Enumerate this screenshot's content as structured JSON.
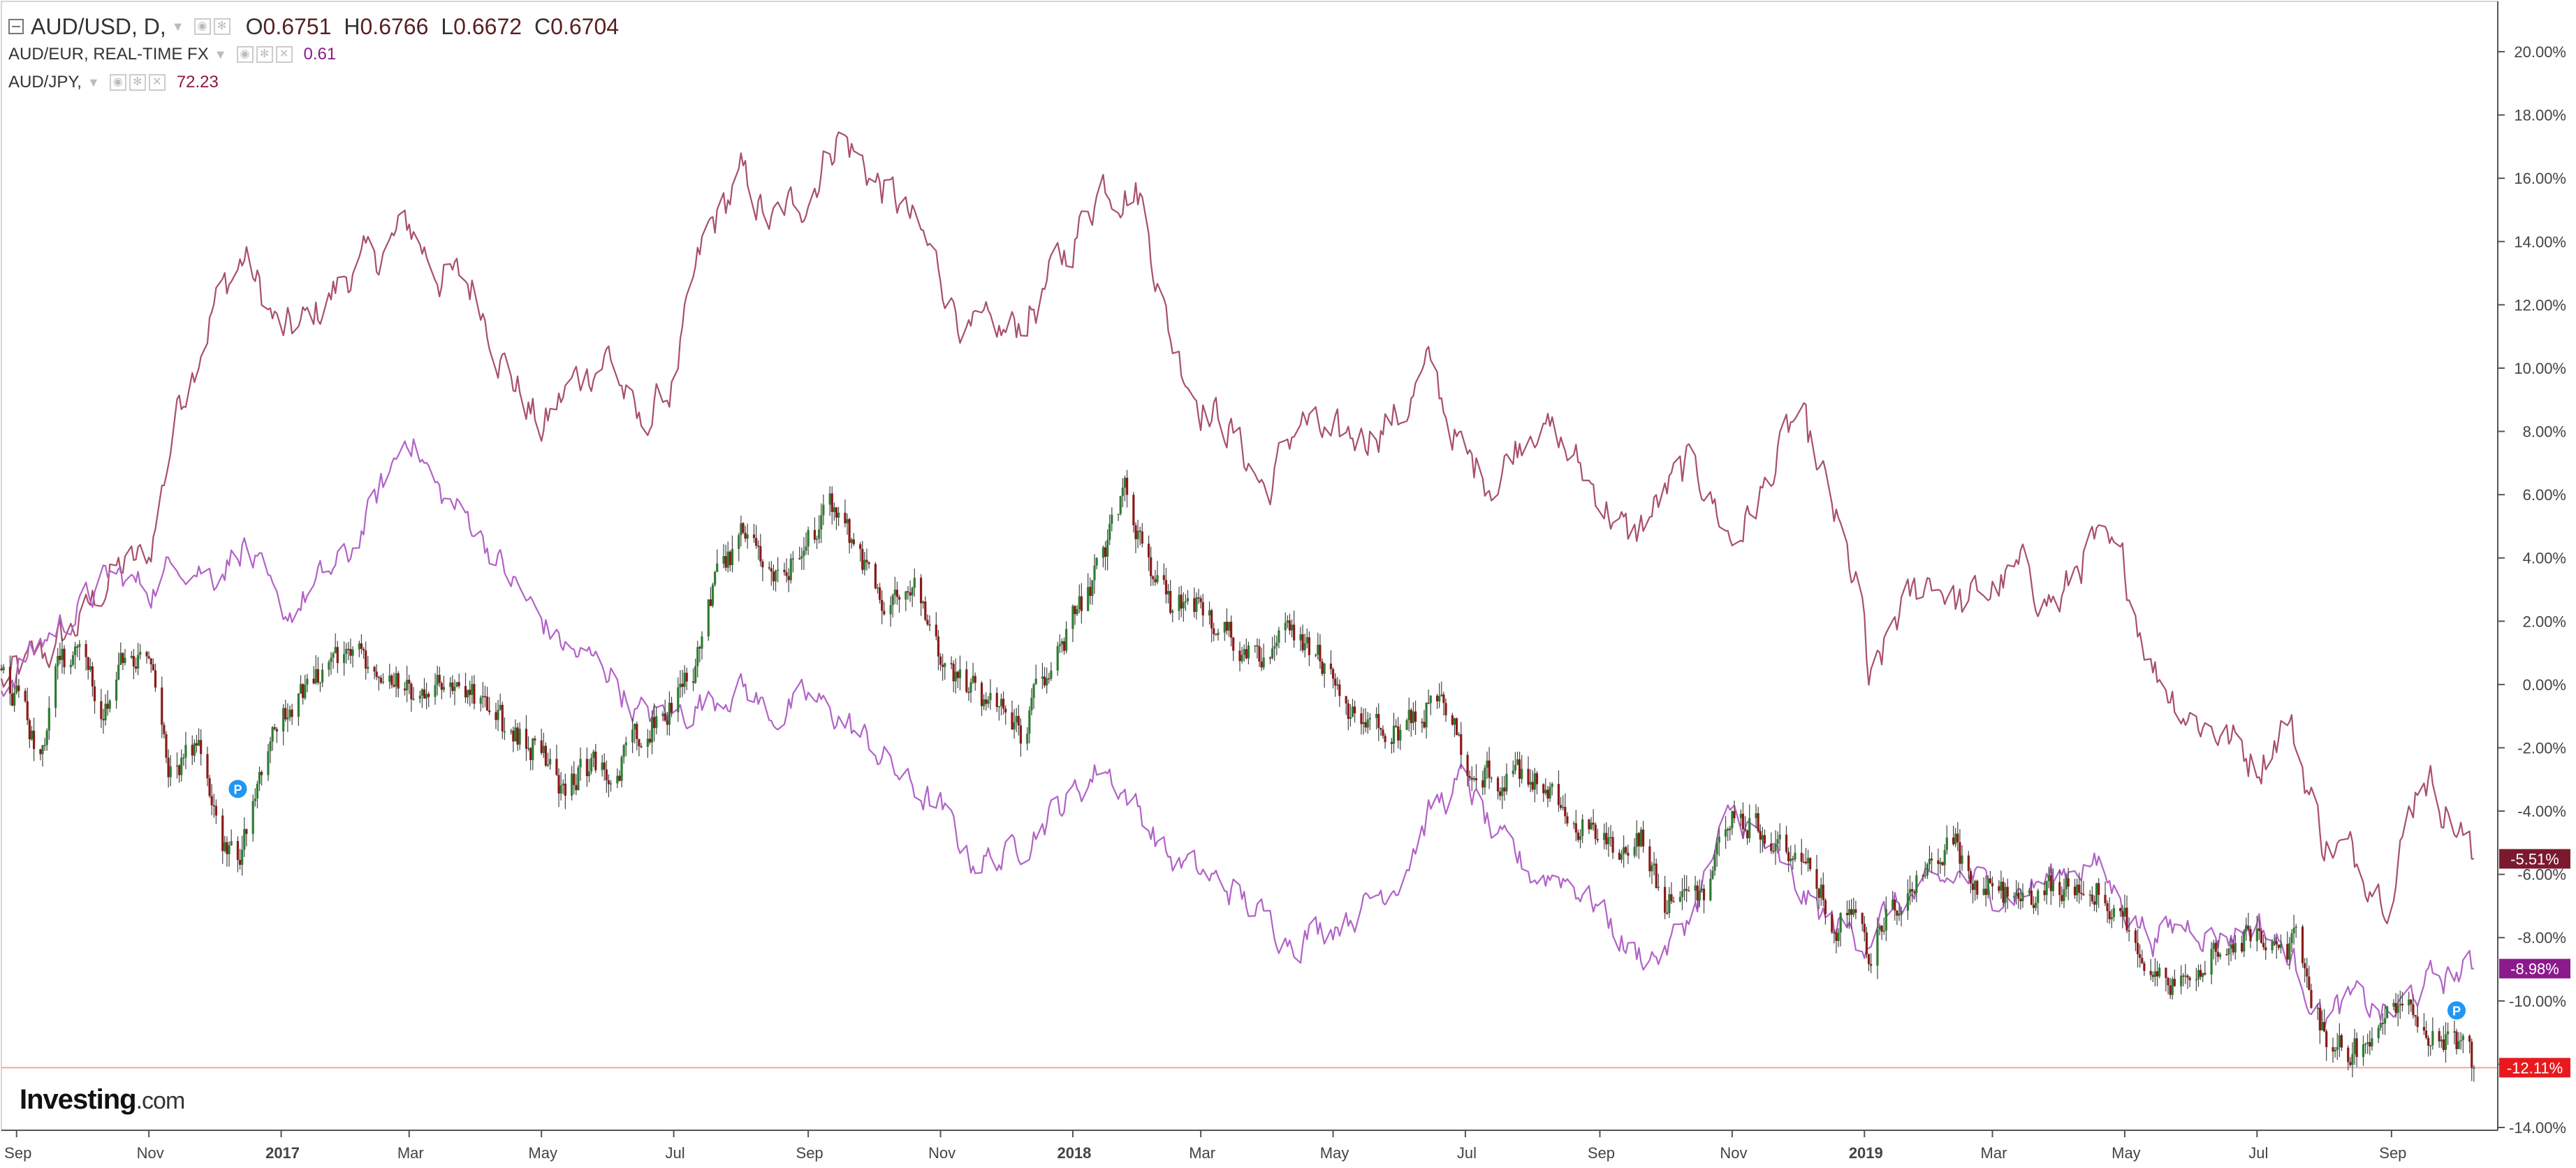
{
  "legend": {
    "main": {
      "symbol": "AUD/USD, D,",
      "o_label": "O",
      "o_value": "0.6751",
      "h_label": "H",
      "h_value": "0.6766",
      "l_label": "L",
      "l_value": "0.6672",
      "c_label": "C",
      "c_value": "0.6704"
    },
    "eur": {
      "symbol": "AUD/EUR, REAL-TIME FX",
      "value": "0.61"
    },
    "jpy": {
      "symbol": "AUD/JPY,",
      "value": "72.23"
    }
  },
  "logo": {
    "text": "Investing",
    "suffix": ".com"
  },
  "colors": {
    "candle_up": "#2e7d32",
    "candle_down": "#8b1a1a",
    "eur_line": "#b263c7",
    "jpy_line": "#a8506b",
    "usd_badge": "#e8191e",
    "eur_badge": "#8b1a8b",
    "jpy_badge": "#7b1a2e",
    "last_price_line": "#f2a7a0"
  },
  "chart_data": {
    "type": "line",
    "title": "",
    "xlabel": "",
    "ylabel": "",
    "ylim": [
      -14.5,
      21
    ],
    "y_ticks": [
      "20.00%",
      "18.00%",
      "16.00%",
      "14.00%",
      "12.00%",
      "10.00%",
      "8.00%",
      "6.00%",
      "4.00%",
      "2.00%",
      "0.00%",
      "-2.00%",
      "-4.00%",
      "-6.00%",
      "-8.00%",
      "-10.00%",
      "-12.00%",
      "-14.00%"
    ],
    "y_tick_values": [
      20,
      18,
      16,
      14,
      12,
      10,
      8,
      6,
      4,
      2,
      0,
      -2,
      -4,
      -6,
      -8,
      -10,
      -12,
      -14
    ],
    "x_range": [
      "2016-08-25",
      "2019-10-20"
    ],
    "x_ticks": [
      {
        "label": "Sep",
        "date": "2016-09-01",
        "bold": false
      },
      {
        "label": "Nov",
        "date": "2016-11-01",
        "bold": false
      },
      {
        "label": "2017",
        "date": "2017-01-01",
        "bold": true
      },
      {
        "label": "Mar",
        "date": "2017-03-01",
        "bold": false
      },
      {
        "label": "May",
        "date": "2017-05-01",
        "bold": false
      },
      {
        "label": "Jul",
        "date": "2017-07-01",
        "bold": false
      },
      {
        "label": "Sep",
        "date": "2017-09-01",
        "bold": false
      },
      {
        "label": "Nov",
        "date": "2017-11-01",
        "bold": false
      },
      {
        "label": "2018",
        "date": "2018-01-01",
        "bold": true
      },
      {
        "label": "Mar",
        "date": "2018-03-01",
        "bold": false
      },
      {
        "label": "May",
        "date": "2018-05-01",
        "bold": false
      },
      {
        "label": "Jul",
        "date": "2018-07-01",
        "bold": false
      },
      {
        "label": "Sep",
        "date": "2018-09-01",
        "bold": false
      },
      {
        "label": "Nov",
        "date": "2018-11-01",
        "bold": false
      },
      {
        "label": "2019",
        "date": "2019-01-01",
        "bold": true
      },
      {
        "label": "Mar",
        "date": "2019-03-01",
        "bold": false
      },
      {
        "label": "May",
        "date": "2019-05-01",
        "bold": false
      },
      {
        "label": "Jul",
        "date": "2019-07-01",
        "bold": false
      },
      {
        "label": "Sep",
        "date": "2019-09-01",
        "bold": false
      }
    ],
    "series": [
      {
        "name": "AUD/USD",
        "kind": "candlestick",
        "x": [
          "2016-08-25",
          "2016-09-01",
          "2016-09-12",
          "2016-09-20",
          "2016-10-01",
          "2016-10-10",
          "2016-10-20",
          "2016-11-01",
          "2016-11-07",
          "2016-11-10",
          "2016-11-15",
          "2016-11-25",
          "2016-12-05",
          "2016-12-12",
          "2016-12-20",
          "2016-12-28",
          "2017-01-10",
          "2017-01-20",
          "2017-02-01",
          "2017-02-10",
          "2017-02-20",
          "2017-03-01",
          "2017-03-10",
          "2017-03-20",
          "2017-04-01",
          "2017-04-15",
          "2017-05-01",
          "2017-05-10",
          "2017-05-20",
          "2017-06-01",
          "2017-06-15",
          "2017-07-01",
          "2017-07-10",
          "2017-07-20",
          "2017-08-01",
          "2017-08-10",
          "2017-08-20",
          "2017-09-01",
          "2017-09-10",
          "2017-09-20",
          "2017-10-01",
          "2017-10-10",
          "2017-10-20",
          "2017-11-01",
          "2017-11-10",
          "2017-11-20",
          "2017-12-01",
          "2017-12-08",
          "2017-12-20",
          "2018-01-01",
          "2018-01-10",
          "2018-01-20",
          "2018-01-26",
          "2018-02-05",
          "2018-02-15",
          "2018-03-01",
          "2018-03-15",
          "2018-04-01",
          "2018-04-15",
          "2018-05-01",
          "2018-05-10",
          "2018-05-20",
          "2018-06-01",
          "2018-06-10",
          "2018-06-20",
          "2018-07-01",
          "2018-07-15",
          "2018-08-01",
          "2018-08-10",
          "2018-08-20",
          "2018-09-01",
          "2018-09-10",
          "2018-09-20",
          "2018-10-01",
          "2018-10-10",
          "2018-10-20",
          "2018-11-01",
          "2018-11-15",
          "2018-12-01",
          "2018-12-10",
          "2018-12-20",
          "2019-01-01",
          "2019-01-03",
          "2019-01-10",
          "2019-01-20",
          "2019-02-01",
          "2019-02-10",
          "2019-02-20",
          "2019-03-01",
          "2019-03-15",
          "2019-04-01",
          "2019-04-15",
          "2019-05-01",
          "2019-05-10",
          "2019-05-20",
          "2019-06-01",
          "2019-06-15",
          "2019-07-01",
          "2019-07-10",
          "2019-07-20",
          "2019-08-01",
          "2019-08-10",
          "2019-08-20",
          "2019-09-01",
          "2019-09-10",
          "2019-09-20",
          "2019-10-01",
          "2019-10-09"
        ],
        "values": [
          0.5,
          -0.5,
          -2.0,
          0.5,
          1.0,
          -0.5,
          0.5,
          1.2,
          -1.0,
          -3.5,
          -2.5,
          -2.0,
          -5.0,
          -5.8,
          -3.0,
          -1.5,
          -0.5,
          0.5,
          1.0,
          0.8,
          0.5,
          0.0,
          -1.0,
          0.5,
          -0.5,
          -1.5,
          -2.0,
          -3.5,
          -2.5,
          -3.0,
          -1.5,
          -0.5,
          0.5,
          3.0,
          4.5,
          4.0,
          3.5,
          4.5,
          5.5,
          4.5,
          3.0,
          2.5,
          3.0,
          0.5,
          0.0,
          -0.5,
          -1.0,
          -1.5,
          0.5,
          2.0,
          3.0,
          5.0,
          6.0,
          3.5,
          2.5,
          2.5,
          1.5,
          1.0,
          1.5,
          0.5,
          -1.0,
          -1.5,
          -1.5,
          -1.0,
          0.0,
          -2.5,
          -3.0,
          -3.0,
          -3.5,
          -4.0,
          -5.0,
          -5.5,
          -5.0,
          -7.0,
          -6.5,
          -6.5,
          -4.0,
          -4.5,
          -5.5,
          -6.5,
          -7.5,
          -7.5,
          -9.0,
          -7.5,
          -6.5,
          -6.0,
          -4.5,
          -6.5,
          -6.5,
          -7.0,
          -6.5,
          -6.0,
          -7.5,
          -8.5,
          -9.5,
          -9.5,
          -8.0,
          -8.0,
          -7.5,
          -8.5,
          -11.0,
          -11.5,
          -11.5,
          -10.5,
          -10.0,
          -11.0,
          -11.2,
          -12.11
        ]
      },
      {
        "name": "AUD/EUR",
        "kind": "line",
        "x": [
          "2016-08-25",
          "2016-09-15",
          "2016-10-01",
          "2016-10-15",
          "2016-11-01",
          "2016-11-15",
          "2016-12-01",
          "2016-12-15",
          "2017-01-01",
          "2017-01-15",
          "2017-02-01",
          "2017-02-15",
          "2017-03-01",
          "2017-03-15",
          "2017-04-01",
          "2017-04-15",
          "2017-05-01",
          "2017-05-15",
          "2017-06-01",
          "2017-06-15",
          "2017-07-01",
          "2017-07-15",
          "2017-08-01",
          "2017-08-15",
          "2017-09-01",
          "2017-09-15",
          "2017-10-01",
          "2017-10-15",
          "2017-11-01",
          "2017-11-15",
          "2017-12-01",
          "2017-12-15",
          "2018-01-01",
          "2018-01-15",
          "2018-02-01",
          "2018-02-15",
          "2018-03-01",
          "2018-03-15",
          "2018-04-01",
          "2018-04-15",
          "2018-05-01",
          "2018-05-15",
          "2018-06-01",
          "2018-06-15",
          "2018-07-01",
          "2018-07-15",
          "2018-08-01",
          "2018-08-15",
          "2018-09-01",
          "2018-09-15",
          "2018-10-01",
          "2018-10-15",
          "2018-11-01",
          "2018-11-15",
          "2018-12-01",
          "2018-12-15",
          "2019-01-01",
          "2019-01-15",
          "2019-02-01",
          "2019-02-15",
          "2019-03-01",
          "2019-03-15",
          "2019-04-01",
          "2019-04-15",
          "2019-05-01",
          "2019-05-15",
          "2019-06-01",
          "2019-06-15",
          "2019-07-01",
          "2019-07-15",
          "2019-08-01",
          "2019-08-15",
          "2019-09-01",
          "2019-09-15",
          "2019-10-09"
        ],
        "values": [
          0.0,
          1.5,
          2.5,
          3.5,
          3.0,
          4.0,
          3.5,
          4.5,
          2.0,
          3.0,
          4.0,
          6.0,
          8.0,
          6.0,
          5.0,
          3.5,
          2.0,
          1.0,
          0.5,
          -1.0,
          -1.0,
          -0.5,
          0.0,
          -1.0,
          -0.5,
          -1.0,
          -2.0,
          -3.0,
          -4.0,
          -5.5,
          -5.5,
          -4.5,
          -3.5,
          -2.5,
          -4.0,
          -5.5,
          -6.0,
          -6.5,
          -7.5,
          -8.0,
          -7.5,
          -7.0,
          -6.0,
          -4.0,
          -3.0,
          -5.0,
          -6.0,
          -6.0,
          -7.0,
          -8.5,
          -8.5,
          -7.0,
          -4.0,
          -5.0,
          -6.5,
          -7.5,
          -8.0,
          -7.0,
          -6.5,
          -6.0,
          -6.5,
          -6.5,
          -6.0,
          -5.5,
          -7.0,
          -8.0,
          -7.5,
          -8.0,
          -7.5,
          -8.5,
          -10.5,
          -10.0,
          -10.5,
          -9.5,
          -8.98
        ]
      },
      {
        "name": "AUD/JPY",
        "kind": "line",
        "x": [
          "2016-08-25",
          "2016-09-15",
          "2016-10-01",
          "2016-10-15",
          "2016-11-01",
          "2016-11-15",
          "2016-12-01",
          "2016-12-15",
          "2017-01-01",
          "2017-01-15",
          "2017-02-01",
          "2017-02-15",
          "2017-03-01",
          "2017-03-15",
          "2017-04-01",
          "2017-04-15",
          "2017-05-01",
          "2017-05-15",
          "2017-06-01",
          "2017-06-15",
          "2017-07-01",
          "2017-07-15",
          "2017-08-01",
          "2017-08-15",
          "2017-09-01",
          "2017-09-15",
          "2017-10-01",
          "2017-10-15",
          "2017-11-01",
          "2017-11-15",
          "2017-12-01",
          "2017-12-15",
          "2018-01-01",
          "2018-01-15",
          "2018-02-01",
          "2018-02-15",
          "2018-03-01",
          "2018-03-15",
          "2018-04-01",
          "2018-04-15",
          "2018-05-01",
          "2018-05-15",
          "2018-06-01",
          "2018-06-15",
          "2018-07-01",
          "2018-07-15",
          "2018-08-01",
          "2018-08-15",
          "2018-09-01",
          "2018-09-15",
          "2018-10-01",
          "2018-10-15",
          "2018-11-01",
          "2018-11-15",
          "2018-12-01",
          "2018-12-15",
          "2019-01-01",
          "2019-01-03",
          "2019-01-15",
          "2019-02-01",
          "2019-02-15",
          "2019-03-01",
          "2019-03-15",
          "2019-04-01",
          "2019-04-15",
          "2019-05-01",
          "2019-05-15",
          "2019-06-01",
          "2019-06-15",
          "2019-07-01",
          "2019-07-15",
          "2019-08-01",
          "2019-08-15",
          "2019-09-01",
          "2019-09-15",
          "2019-10-09"
        ],
        "values": [
          0.0,
          1.0,
          2.0,
          3.5,
          4.0,
          9.0,
          12.0,
          13.5,
          11.0,
          11.5,
          13.0,
          13.5,
          14.5,
          13.0,
          12.5,
          10.0,
          8.0,
          9.5,
          10.5,
          8.0,
          9.5,
          14.0,
          16.0,
          14.5,
          15.5,
          17.5,
          16.0,
          15.0,
          13.0,
          11.0,
          11.0,
          12.0,
          14.0,
          16.0,
          15.5,
          11.0,
          9.0,
          8.0,
          6.0,
          8.5,
          7.5,
          8.0,
          8.5,
          10.0,
          7.0,
          6.5,
          8.5,
          7.5,
          6.0,
          4.5,
          6.0,
          7.0,
          4.5,
          6.0,
          8.5,
          6.0,
          2.0,
          -0.5,
          2.0,
          3.5,
          2.5,
          3.0,
          3.5,
          2.5,
          4.5,
          3.5,
          0.5,
          -1.0,
          -1.5,
          -2.5,
          -1.0,
          -5.0,
          -5.5,
          -6.5,
          -2.5,
          -5.51
        ]
      }
    ],
    "last_value_badges": [
      {
        "series": "AUD/JPY",
        "text": "-5.51%",
        "value": -5.51
      },
      {
        "series": "AUD/EUR",
        "text": "-8.98%",
        "value": -8.98
      },
      {
        "series": "AUD/USD",
        "text": "-12.11%",
        "value": -12.11
      }
    ],
    "event_markers": [
      {
        "text": "P",
        "date": "2016-12-12",
        "value": -3.3
      },
      {
        "text": "P",
        "date": "2019-10-01",
        "value": -10.3
      }
    ],
    "grid": false,
    "legend_position": "top-left"
  }
}
